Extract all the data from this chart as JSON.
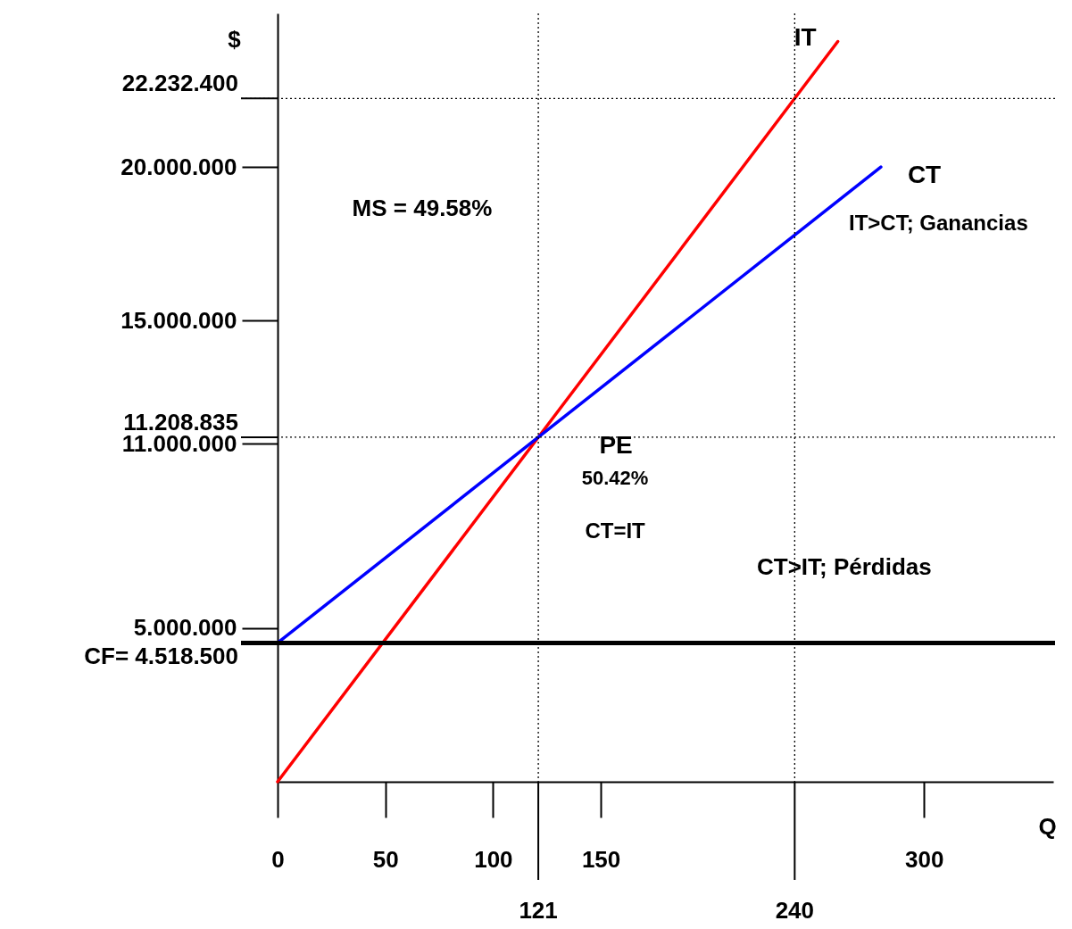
{
  "chart_data": {
    "type": "line",
    "xlabel": "Q",
    "ylabel": "$",
    "xlim": [
      0,
      360
    ],
    "ylim": [
      0,
      25000000
    ],
    "xticks": [
      0,
      50,
      100,
      150,
      300
    ],
    "yticks": [
      {
        "value": 5000000,
        "label": "5.000.000"
      },
      {
        "value": 11000000,
        "label": "11.000.000"
      },
      {
        "value": 15000000,
        "label": "15.000.000"
      },
      {
        "value": 20000000,
        "label": "20.000.000"
      }
    ],
    "series": [
      {
        "name": "IT",
        "color": "#ff0000",
        "x": [
          0,
          121,
          240,
          260
        ],
        "values": [
          0,
          11208835,
          22232400,
          24085100
        ]
      },
      {
        "name": "CT",
        "color": "#0000ff",
        "x": [
          0,
          121,
          280
        ],
        "values": [
          4518500,
          11208835,
          20000000
        ]
      }
    ],
    "ref_lines": [
      {
        "axis": "y",
        "value": 4518500,
        "label": "CF= 4.518.500",
        "color": "#000000",
        "line_style": "solid"
      },
      {
        "axis": "y",
        "value": 11208835,
        "label": "11.208.835",
        "color": "#000000",
        "line_style": "dotted"
      },
      {
        "axis": "y",
        "value": 22232400,
        "label": "22.232.400",
        "color": "#000000",
        "line_style": "dotted"
      },
      {
        "axis": "x",
        "value": 121,
        "label": "121",
        "color": "#000000",
        "line_style": "dotted"
      },
      {
        "axis": "x",
        "value": 240,
        "label": "240",
        "color": "#000000",
        "line_style": "dotted"
      }
    ],
    "annotations": [
      {
        "text": "PE",
        "x": 121,
        "y": 11208835
      },
      "50.42%",
      "CT=IT",
      "MS = 49.58%",
      "IT>CT; Ganancias",
      "CT>IT; Pérdidas"
    ],
    "grid": false,
    "legend": false,
    "line_style": "solid",
    "marker": "none"
  }
}
